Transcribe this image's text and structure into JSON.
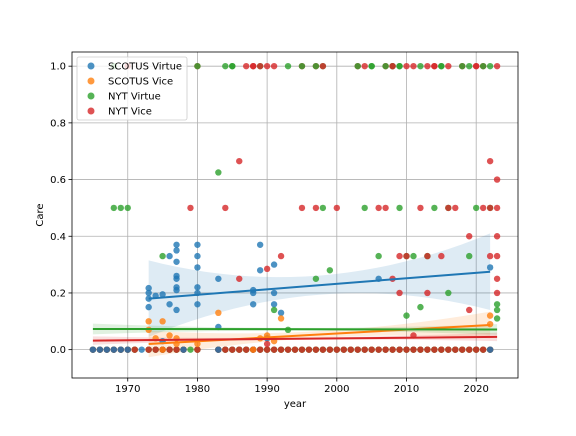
{
  "chart_data": {
    "type": "scatter",
    "xlabel": "year",
    "ylabel": "Care",
    "xlim": [
      1962,
      2026
    ],
    "ylim": [
      -0.1,
      1.05
    ],
    "xticks": [
      1970,
      1980,
      1990,
      2000,
      2010,
      2020
    ],
    "yticks": [
      0.0,
      0.2,
      0.4,
      0.6,
      0.8,
      1.0
    ],
    "xtick_labels": [
      "1970",
      "1980",
      "1990",
      "2000",
      "2010",
      "2020"
    ],
    "ytick_labels": [
      "0.0",
      "0.2",
      "0.4",
      "0.6",
      "0.8",
      "1.0"
    ],
    "grid": true,
    "legend_position": "top-left",
    "series": [
      {
        "name": "SCOTUS Virtue",
        "color": "#1f77b4",
        "x": [
          1965,
          1966,
          1967,
          1968,
          1969,
          1970,
          1972,
          1973,
          1973,
          1973,
          1973,
          1974,
          1975,
          1975,
          1976,
          1976,
          1977,
          1977,
          1977,
          1977,
          1977,
          1977,
          1977,
          1977,
          1978,
          1980,
          1980,
          1980,
          1980,
          1980,
          1980,
          1983,
          1983,
          1983,
          1988,
          1988,
          1988,
          1989,
          1989,
          1990,
          1991,
          1991,
          1991,
          1992,
          2006,
          2022,
          2022
        ],
        "y": [
          0,
          0,
          0,
          0,
          0,
          0,
          0,
          0.217,
          0.2,
          0.18,
          0.15,
          0.19,
          0.195,
          0.03,
          0.16,
          0.33,
          0.37,
          0.35,
          0.31,
          0.26,
          0.25,
          0.22,
          0.21,
          0.14,
          0,
          0.37,
          0.33,
          0.29,
          0.22,
          0.2,
          0.16,
          0.25,
          0.08,
          0,
          0.21,
          0.2,
          0.16,
          0.37,
          0.28,
          0.04,
          0.3,
          0.2,
          0.16,
          0.13,
          0.25,
          0.29,
          0
        ],
        "fit": {
          "x": [
            1973,
            2022
          ],
          "y": [
            0.18,
            0.275
          ],
          "ci_low_end": 0.15,
          "ci_high_end": 0.41
        }
      },
      {
        "name": "SCOTUS Vice",
        "color": "#ff7f0e",
        "x": [
          1973,
          1973,
          1974,
          1975,
          1975,
          1976,
          1977,
          1977,
          1980,
          1983,
          1988,
          1989,
          1990,
          1991,
          1992,
          2022,
          2022
        ],
        "y": [
          0.1,
          0.07,
          0.04,
          0.1,
          0.0,
          0.05,
          0.04,
          0.02,
          0.02,
          0.13,
          0.0,
          0.04,
          0.05,
          0.03,
          0.11,
          0.12,
          0.09
        ],
        "fit": {
          "x": [
            1973,
            2022
          ],
          "y": [
            0.02,
            0.087
          ],
          "ci_low_end": 0.04,
          "ci_high_end": 0.125
        }
      },
      {
        "name": "NYT Virtue",
        "color": "#2ca02c",
        "x": [
          1968,
          1969,
          1970,
          1975,
          1979,
          1980,
          1983,
          1984,
          1985,
          1991,
          1993,
          1995,
          1997,
          1997,
          1998,
          1999,
          2003,
          2004,
          2005,
          2006,
          2007,
          2008,
          2009,
          2009,
          2010,
          2010,
          2011,
          2012,
          2013,
          2014,
          2015,
          2016,
          2016,
          2018,
          2019,
          2020,
          2021,
          2022,
          2023,
          2023,
          2023
        ],
        "y": [
          0.5,
          0.5,
          0.5,
          0.33,
          0,
          1.0,
          0.625,
          1.0,
          1.0,
          0.14,
          0.07,
          1.0,
          1.0,
          0.25,
          0.5,
          0.28,
          1.0,
          0.5,
          1.0,
          0.33,
          1.0,
          1.0,
          0.5,
          1.0,
          0.12,
          0.33,
          0.33,
          0.15,
          0.33,
          0.5,
          1.0,
          0.2,
          0.5,
          1.0,
          0.33,
          0.5,
          1.0,
          0.5,
          0.14,
          0.11,
          0.16
        ],
        "fit": {
          "x": [
            1965,
            2023
          ],
          "y": [
            0.073,
            0.071
          ],
          "ci_low_end": 0.06,
          "ci_high_end": 0.09
        }
      },
      {
        "name": "NYT Vice",
        "color": "#d62728",
        "x": [
          1979,
          1984,
          1986,
          1986,
          1988,
          1989,
          1990,
          1990,
          1992,
          1995,
          1997,
          1998,
          2000,
          2006,
          2007,
          2008,
          2008,
          2009,
          2009,
          2010,
          2011,
          2012,
          2013,
          2013,
          2014,
          2015,
          2016,
          2017,
          2019,
          2019,
          2020,
          2021,
          2022,
          2022,
          2022,
          2023,
          2023,
          2023,
          2023,
          2023,
          2023
        ],
        "y": [
          0.5,
          0.5,
          0.665,
          0.25,
          1.0,
          1.0,
          0.285,
          0.02,
          0.33,
          0.5,
          0.5,
          1.0,
          0.5,
          0.5,
          0.5,
          0.25,
          1.0,
          0.2,
          0.33,
          0.33,
          0.05,
          0.5,
          0.2,
          0.33,
          1.0,
          0.33,
          0.5,
          0.5,
          0.14,
          0.4,
          1.0,
          0.5,
          0.665,
          0.5,
          0.33,
          0.6,
          0.5,
          0.4,
          0.33,
          0.25,
          0.2
        ],
        "fit": {
          "x": [
            1965,
            2023
          ],
          "y": [
            0.032,
            0.045
          ],
          "ci_low_end": 0.03,
          "ci_high_end": 0.06
        }
      }
    ],
    "baseline_clusters": {
      "y": 0,
      "x_ranges": [
        [
          1965,
          1971
        ],
        [
          1973,
          1978
        ],
        [
          1980,
          1980
        ],
        [
          1983,
          2022
        ]
      ]
    },
    "top_row": {
      "y": 1.0,
      "x_values": [
        1968,
        1970,
        1980,
        1985,
        1987,
        1988,
        1989,
        1990,
        1991,
        1993,
        1995,
        1997,
        1998,
        2003,
        2004,
        2005,
        2007,
        2008,
        2009,
        2010,
        2011,
        2012,
        2013,
        2014,
        2015,
        2016,
        2018,
        2019,
        2020,
        2021,
        2022,
        2023
      ]
    }
  }
}
